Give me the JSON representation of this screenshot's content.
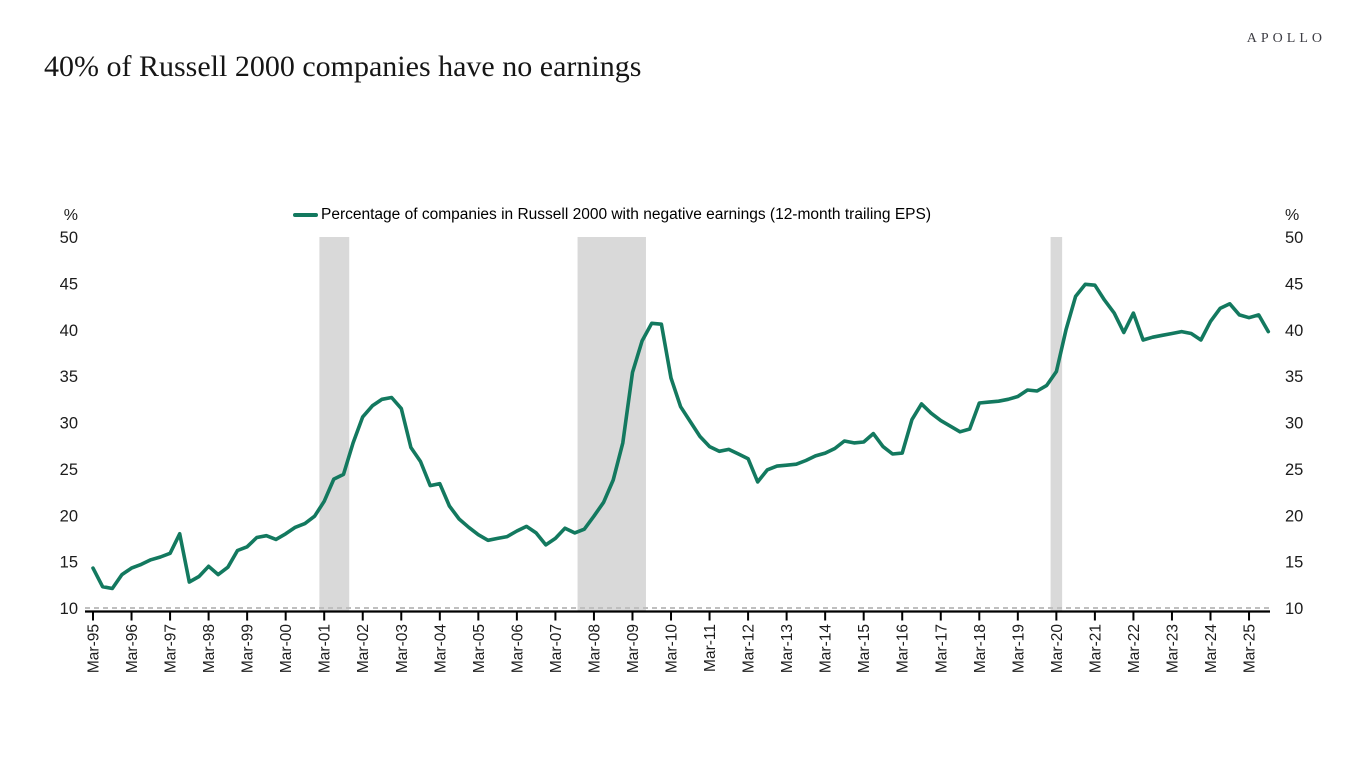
{
  "brand": {
    "logo": "APOLLO"
  },
  "title": "40% of Russell 2000 companies have no earnings",
  "legend": {
    "label": "Percentage of companies in Russell 2000 with negative earnings (12-month trailing EPS)"
  },
  "chart_data": {
    "type": "line",
    "title": "40% of Russell 2000 companies have no earnings",
    "xlabel": "",
    "ylabel": "%",
    "y_axis": {
      "unit_label": "%",
      "min": 10,
      "max": 50,
      "step": 5,
      "sides": "both"
    },
    "x_axis": {
      "start": "Mar-95",
      "end": "Sep-25",
      "frequency": "quarterly",
      "label_every_n": 4
    },
    "x_tick_labels": [
      "Mar-95",
      "Mar-96",
      "Mar-97",
      "Mar-98",
      "Mar-99",
      "Mar-00",
      "Mar-01",
      "Mar-02",
      "Mar-03",
      "Mar-04",
      "Mar-05",
      "Mar-06",
      "Mar-07",
      "Mar-08",
      "Mar-09",
      "Mar-10",
      "Mar-11",
      "Mar-12",
      "Mar-13",
      "Mar-14",
      "Mar-15",
      "Mar-16",
      "Mar-17",
      "Mar-18",
      "Mar-19",
      "Mar-20",
      "Mar-21",
      "Mar-22",
      "Mar-23",
      "Mar-24",
      "Mar-25"
    ],
    "grid": "off",
    "baseline_dashed": true,
    "legend_position": "top-center",
    "band_color": "#d9d9d9",
    "axis_color": "#000000",
    "dashed_line_color": "#bfbfbf",
    "shaded_bands": [
      {
        "name": "recession-band-2001",
        "start_index": 23.5,
        "end_index": 26.6
      },
      {
        "name": "recession-band-2008-09",
        "start_index": 50.3,
        "end_index": 57.4
      },
      {
        "name": "recession-band-2020",
        "start_index": 99.4,
        "end_index": 100.6
      }
    ],
    "series": [
      {
        "name": "Percentage of companies in Russell 2000 with negative earnings (12-month trailing EPS)",
        "color": "#13795f",
        "values": [
          14.3,
          12.3,
          12.1,
          13.6,
          14.3,
          14.7,
          15.2,
          15.5,
          15.9,
          18.0,
          12.8,
          13.4,
          14.5,
          13.6,
          14.4,
          16.2,
          16.6,
          17.6,
          17.8,
          17.4,
          18.0,
          18.7,
          19.1,
          19.9,
          21.5,
          23.9,
          24.4,
          27.8,
          30.6,
          31.8,
          32.5,
          32.7,
          31.5,
          27.3,
          25.8,
          23.2,
          23.4,
          21.0,
          19.6,
          18.7,
          17.9,
          17.3,
          17.5,
          17.7,
          18.3,
          18.8,
          18.1,
          16.8,
          17.5,
          18.6,
          18.1,
          18.5,
          19.9,
          21.4,
          23.8,
          27.8,
          35.4,
          38.8,
          40.7,
          40.6,
          34.8,
          31.7,
          30.1,
          28.5,
          27.4,
          26.9,
          27.1,
          26.6,
          26.1,
          23.6,
          24.9,
          25.3,
          25.4,
          25.5,
          25.9,
          26.4,
          26.7,
          27.2,
          28.0,
          27.8,
          27.9,
          28.8,
          27.4,
          26.6,
          26.7,
          30.3,
          32.0,
          31.0,
          30.2,
          29.6,
          29.0,
          29.3,
          32.1,
          32.2,
          32.3,
          32.5,
          32.8,
          33.5,
          33.4,
          34.0,
          35.5,
          40.0,
          43.6,
          44.9,
          44.8,
          43.2,
          41.8,
          39.7,
          41.8,
          38.9,
          39.2,
          39.4,
          39.6,
          39.8,
          39.6,
          38.9,
          40.9,
          42.3,
          42.8,
          41.6,
          41.3,
          41.6,
          39.8
        ]
      }
    ]
  }
}
